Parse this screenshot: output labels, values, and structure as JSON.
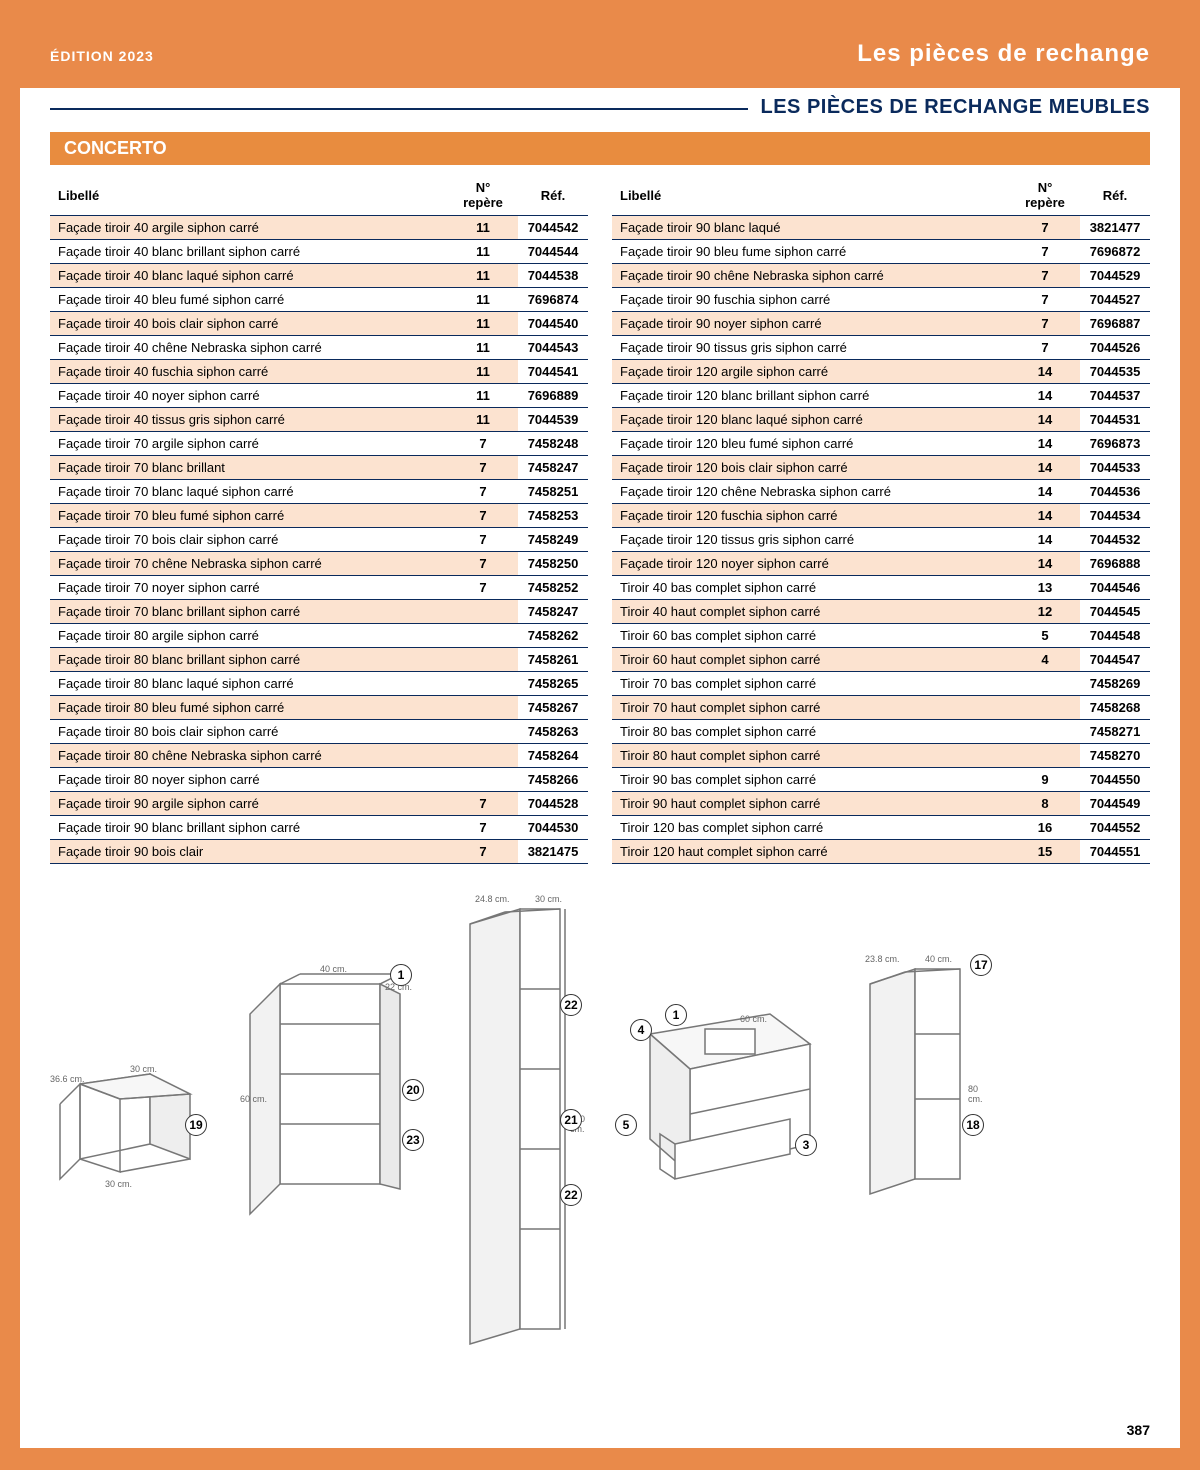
{
  "header": {
    "edition": "ÉDITION 2023",
    "section": "Les pièces de rechange"
  },
  "page_title": "LES PIÈCES DE RECHANGE MEUBLES",
  "section_name": "CONCERTO",
  "columns": {
    "label": "Libellé",
    "repere": "N° repère",
    "ref": "Réf."
  },
  "left_rows": [
    {
      "l": "Façade tiroir 40 argile siphon carré",
      "r": "11",
      "ref": "7044542"
    },
    {
      "l": "Façade tiroir 40 blanc brillant siphon carré",
      "r": "11",
      "ref": "7044544"
    },
    {
      "l": "Façade tiroir 40 blanc laqué siphon carré",
      "r": "11",
      "ref": "7044538"
    },
    {
      "l": "Façade tiroir 40 bleu fumé siphon carré",
      "r": "11",
      "ref": "7696874"
    },
    {
      "l": "Façade tiroir 40 bois clair siphon carré",
      "r": "11",
      "ref": "7044540"
    },
    {
      "l": "Façade tiroir 40 chêne Nebraska siphon carré",
      "r": "11",
      "ref": "7044543"
    },
    {
      "l": "Façade tiroir 40 fuschia siphon carré",
      "r": "11",
      "ref": "7044541"
    },
    {
      "l": "Façade tiroir 40 noyer siphon carré",
      "r": "11",
      "ref": "7696889"
    },
    {
      "l": "Façade tiroir 40 tissus gris siphon carré",
      "r": "11",
      "ref": "7044539"
    },
    {
      "l": "Façade tiroir 70 argile siphon carré",
      "r": "7",
      "ref": "7458248"
    },
    {
      "l": "Façade tiroir 70 blanc brillant",
      "r": "7",
      "ref": "7458247"
    },
    {
      "l": "Façade tiroir 70 blanc laqué siphon carré",
      "r": "7",
      "ref": "7458251"
    },
    {
      "l": "Façade tiroir 70 bleu fumé siphon carré",
      "r": "7",
      "ref": "7458253"
    },
    {
      "l": "Façade tiroir 70 bois clair siphon carré",
      "r": "7",
      "ref": "7458249"
    },
    {
      "l": "Façade tiroir 70 chêne Nebraska siphon carré",
      "r": "7",
      "ref": "7458250"
    },
    {
      "l": "Façade tiroir 70 noyer siphon carré",
      "r": "7",
      "ref": "7458252"
    },
    {
      "l": "Façade tiroir 70 blanc brillant siphon carré",
      "r": "",
      "ref": "7458247"
    },
    {
      "l": "Façade tiroir 80 argile siphon carré",
      "r": "",
      "ref": "7458262"
    },
    {
      "l": "Façade tiroir 80 blanc brillant siphon carré",
      "r": "",
      "ref": "7458261"
    },
    {
      "l": "Façade tiroir 80 blanc laqué siphon carré",
      "r": "",
      "ref": "7458265"
    },
    {
      "l": "Façade tiroir 80 bleu fumé siphon carré",
      "r": "",
      "ref": "7458267"
    },
    {
      "l": "Façade tiroir 80 bois clair siphon carré",
      "r": "",
      "ref": "7458263"
    },
    {
      "l": "Façade tiroir 80 chêne Nebraska siphon carré",
      "r": "",
      "ref": "7458264"
    },
    {
      "l": "Façade tiroir 80 noyer siphon carré",
      "r": "",
      "ref": "7458266"
    },
    {
      "l": "Façade tiroir 90 argile siphon carré",
      "r": "7",
      "ref": "7044528"
    },
    {
      "l": "Façade tiroir 90 blanc brillant siphon carré",
      "r": "7",
      "ref": "7044530"
    },
    {
      "l": "Façade tiroir 90 bois clair",
      "r": "7",
      "ref": "3821475"
    }
  ],
  "right_rows": [
    {
      "l": "Façade tiroir 90 blanc laqué",
      "r": "7",
      "ref": "3821477"
    },
    {
      "l": "Façade tiroir 90 bleu fume siphon carré",
      "r": "7",
      "ref": "7696872"
    },
    {
      "l": "Façade tiroir 90 chêne Nebraska siphon carré",
      "r": "7",
      "ref": "7044529"
    },
    {
      "l": "Façade tiroir 90 fuschia siphon carré",
      "r": "7",
      "ref": "7044527"
    },
    {
      "l": "Façade tiroir 90 noyer siphon carré",
      "r": "7",
      "ref": "7696887"
    },
    {
      "l": "Façade tiroir 90 tissus gris siphon carré",
      "r": "7",
      "ref": "7044526"
    },
    {
      "l": "Façade tiroir 120 argile siphon carré",
      "r": "14",
      "ref": "7044535"
    },
    {
      "l": "Façade tiroir 120 blanc brillant siphon carré",
      "r": "14",
      "ref": "7044537"
    },
    {
      "l": "Façade tiroir 120 blanc laqué siphon carré",
      "r": "14",
      "ref": "7044531"
    },
    {
      "l": "Façade tiroir 120 bleu fumé siphon carré",
      "r": "14",
      "ref": "7696873"
    },
    {
      "l": "Façade tiroir 120 bois clair siphon carré",
      "r": "14",
      "ref": "7044533"
    },
    {
      "l": "Façade tiroir 120 chêne Nebraska siphon carré",
      "r": "14",
      "ref": "7044536"
    },
    {
      "l": "Façade tiroir 120 fuschia siphon carré",
      "r": "14",
      "ref": "7044534"
    },
    {
      "l": "Façade tiroir 120 tissus gris siphon carré",
      "r": "14",
      "ref": "7044532"
    },
    {
      "l": "Façade tiroir 120 noyer siphon carré",
      "r": "14",
      "ref": "7696888"
    },
    {
      "l": "Tiroir 40 bas complet siphon carré",
      "r": "13",
      "ref": "7044546"
    },
    {
      "l": "Tiroir 40 haut complet siphon carré",
      "r": "12",
      "ref": "7044545"
    },
    {
      "l": "Tiroir 60 bas complet siphon carré",
      "r": "5",
      "ref": "7044548"
    },
    {
      "l": "Tiroir 60 haut complet siphon carré",
      "r": "4",
      "ref": "7044547"
    },
    {
      "l": "Tiroir 70 bas complet siphon carré",
      "r": "",
      "ref": "7458269"
    },
    {
      "l": "Tiroir 70 haut complet siphon carré",
      "r": "",
      "ref": "7458268"
    },
    {
      "l": "Tiroir 80 bas complet siphon carré",
      "r": "",
      "ref": "7458271"
    },
    {
      "l": "Tiroir 80 haut complet siphon carré",
      "r": "",
      "ref": "7458270"
    },
    {
      "l": "Tiroir 90 bas complet siphon carré",
      "r": "9",
      "ref": "7044550"
    },
    {
      "l": "Tiroir 90 haut complet siphon carré",
      "r": "8",
      "ref": "7044549"
    },
    {
      "l": "Tiroir 120 bas complet siphon carré",
      "r": "16",
      "ref": "7044552"
    },
    {
      "l": "Tiroir 120 haut complet siphon carré",
      "r": "15",
      "ref": "7044551"
    }
  ],
  "diagrams": {
    "d1": {
      "dims": {
        "w": "36.6 cm.",
        "d": "30 cm.",
        "h": "30 cm."
      }
    },
    "d2": {
      "dims": {
        "w": "40 cm.",
        "d": "22 cm.",
        "h": "60 cm."
      }
    },
    "d3": {
      "dims": {
        "w": "24.8 cm.",
        "d": "30 cm.",
        "h": "140 cm."
      }
    },
    "d4": {
      "dims": {
        "w": "60 cm."
      }
    },
    "d5": {
      "dims": {
        "w": "40 cm.",
        "d": "23.8 cm.",
        "h": "80 cm."
      }
    }
  },
  "callouts": {
    "c19": "19",
    "c1a": "1",
    "c20": "20",
    "c23": "23",
    "c22a": "22",
    "c21": "21",
    "c22b": "22",
    "c4": "4",
    "c1b": "1",
    "c5": "5",
    "c3": "3",
    "c17": "17",
    "c18": "18"
  },
  "page_number": "387",
  "colors": {
    "brand": "#e98a4a",
    "dark": "#0a2a5c",
    "stripe": "#fce3d0"
  }
}
